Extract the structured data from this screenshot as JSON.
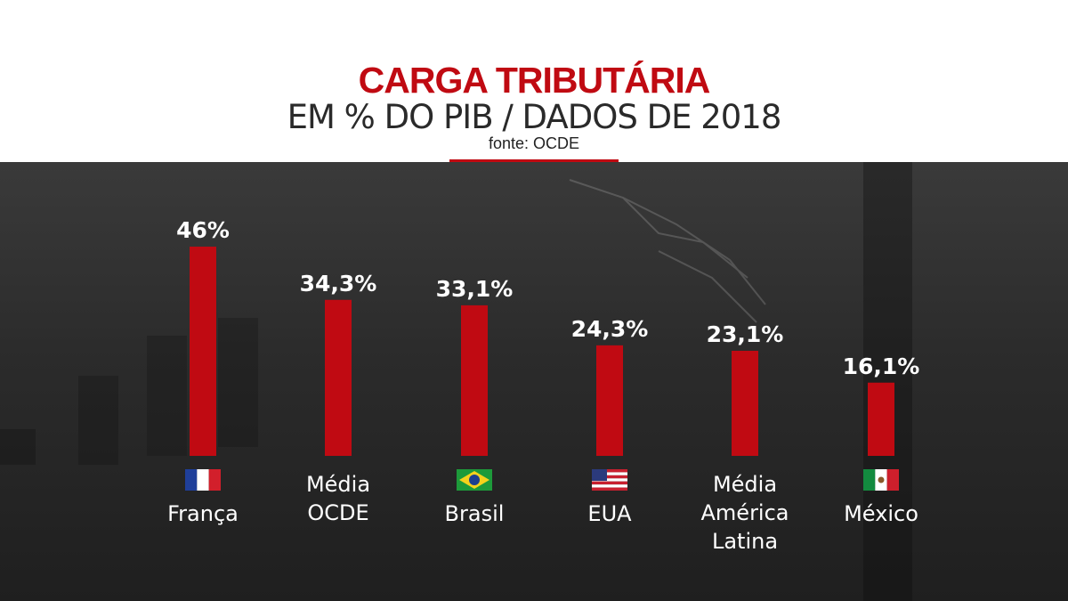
{
  "header": {
    "title": "CARGA TRIBUTÁRIA",
    "subtitle": "EM % DO PIB / DADOS DE 2018",
    "source": "fonte: OCDE"
  },
  "colors": {
    "bar": "#c00a12",
    "title": "#c00a12",
    "background": "#2b2b2b"
  },
  "chart_data": {
    "type": "bar",
    "title": "CARGA TRIBUTÁRIA",
    "subtitle": "EM % DO PIB / DADOS DE 2018",
    "source": "fonte: OCDE",
    "categories": [
      "França",
      "Média OCDE",
      "Brasil",
      "EUA",
      "Média América Latina",
      "México"
    ],
    "category_lines": [
      [
        "França"
      ],
      [
        "Média",
        "OCDE"
      ],
      [
        "Brasil"
      ],
      [
        "EUA"
      ],
      [
        "Média",
        "América",
        "Latina"
      ],
      [
        "México"
      ]
    ],
    "values": [
      46,
      34.3,
      33.1,
      24.3,
      23.1,
      16.1
    ],
    "value_labels": [
      "46%",
      "34,3%",
      "33,1%",
      "24,3%",
      "23,1%",
      "16,1%"
    ],
    "flags": [
      "france-flag-icon",
      null,
      "brazil-flag-icon",
      "usa-flag-icon",
      null,
      "mexico-flag-icon"
    ],
    "ylim": [
      0,
      46
    ],
    "grid": false,
    "legend": "none"
  }
}
